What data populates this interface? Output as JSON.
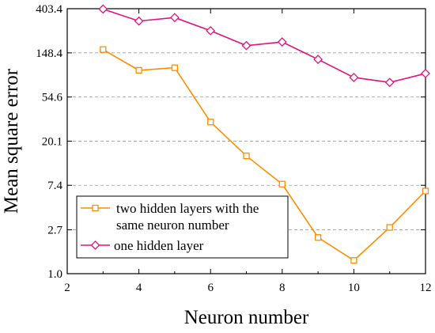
{
  "chart_data": {
    "type": "line",
    "title": "",
    "xlabel": "Neuron number",
    "ylabel": "Mean square error",
    "y_scale": "log",
    "xlim": [
      2,
      12
    ],
    "ylim": [
      1.0,
      403.4
    ],
    "x_ticks": [
      2,
      4,
      6,
      8,
      10,
      12
    ],
    "x_tick_labels": [
      "2",
      "4",
      "6",
      "8",
      "10",
      "12"
    ],
    "y_ticks": [
      1.0,
      2.7,
      7.4,
      20.1,
      54.6,
      148.4,
      403.4
    ],
    "y_tick_labels": [
      "1.0",
      "2.7",
      "7.4",
      "20.1",
      "54.6",
      "148.4",
      "403.4"
    ],
    "grid": "horizontal dashed",
    "legend_position": "lower-left",
    "series": [
      {
        "name": "two hidden layers with the same neuron number",
        "name_lines": [
          "two hidden layers with the",
          "same neuron number"
        ],
        "marker": "square",
        "color": "#FF8C00",
        "x": [
          3,
          4,
          5,
          6,
          7,
          8,
          9,
          10,
          11,
          12
        ],
        "values": [
          160,
          100,
          106,
          31,
          14.4,
          7.6,
          2.27,
          1.35,
          2.85,
          6.5
        ]
      },
      {
        "name": "one hidden layer",
        "marker": "diamond",
        "color": "#E0127E",
        "x": [
          3,
          4,
          5,
          6,
          7,
          8,
          9,
          10,
          11,
          12
        ],
        "values": [
          400,
          305,
          330,
          245,
          175,
          190,
          128,
          85,
          76,
          93
        ]
      }
    ]
  }
}
